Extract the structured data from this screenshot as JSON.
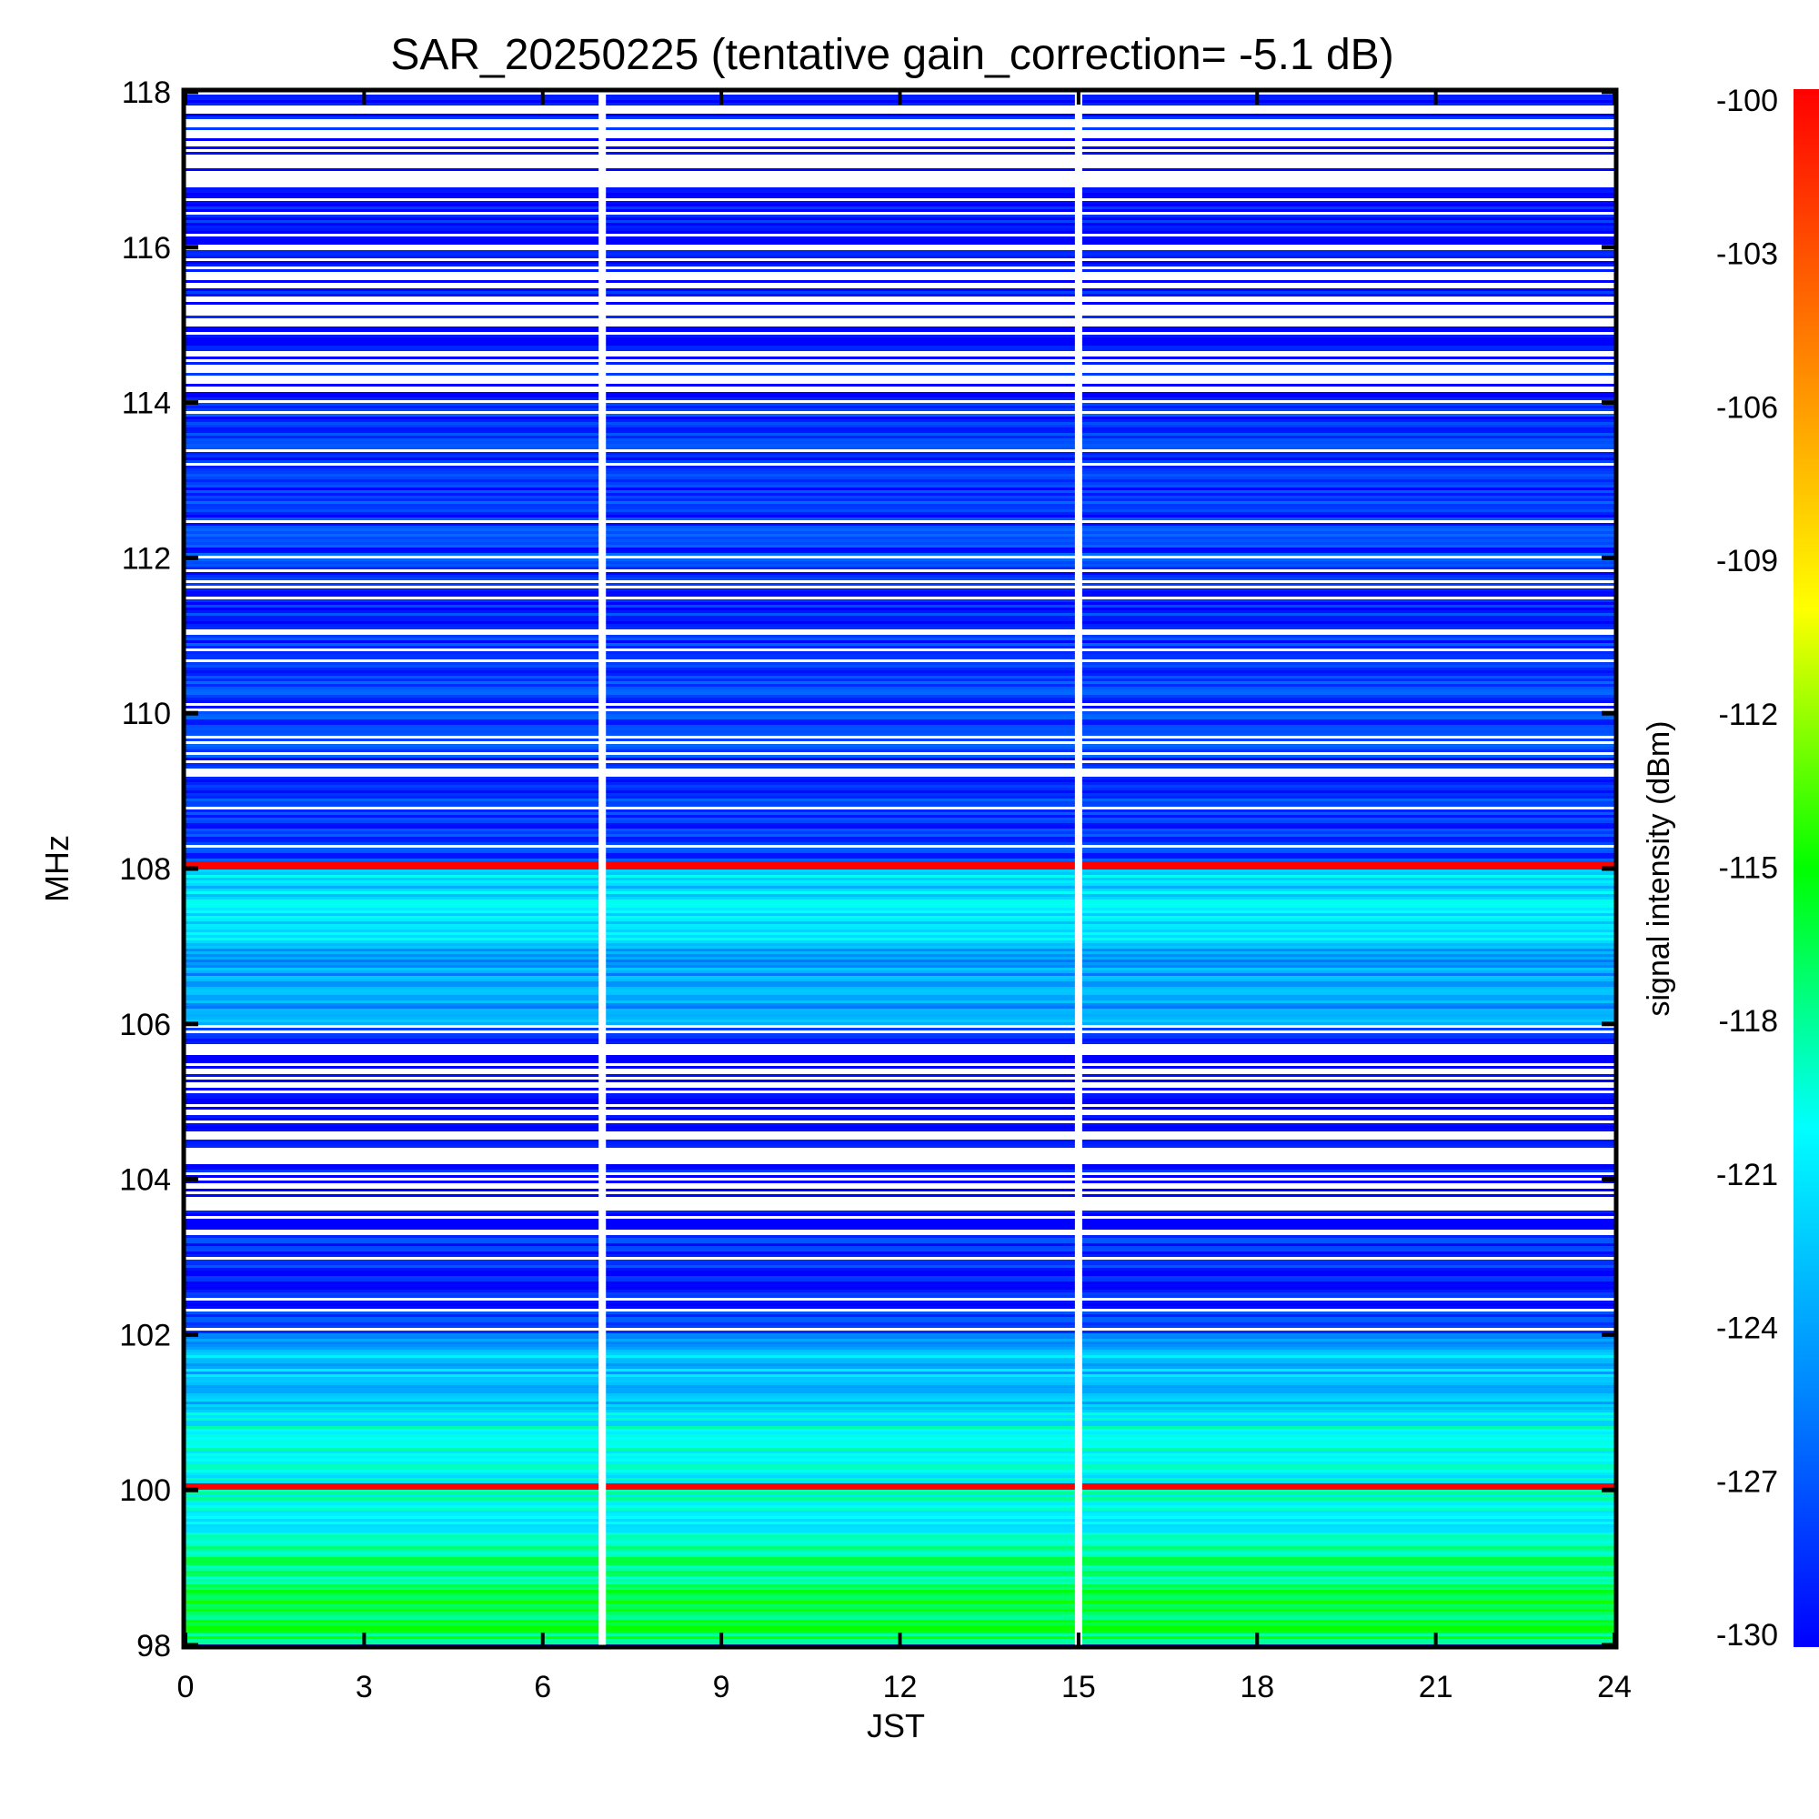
{
  "chart_data": {
    "type": "heatmap",
    "title": "SAR_20250225 (tentative gain_correction= -5.1 dB)",
    "xlabel": "JST",
    "ylabel": "MHz",
    "xlim": [
      0,
      24
    ],
    "ylim": [
      98,
      118
    ],
    "x_ticks": [
      "0",
      "3",
      "6",
      "9",
      "12",
      "15",
      "18",
      "21",
      "24"
    ],
    "y_ticks": [
      "98",
      "100",
      "102",
      "104",
      "106",
      "108",
      "110",
      "112",
      "114",
      "116",
      "118"
    ],
    "colorbar": {
      "label": "signal intensity (dBm)",
      "range": [
        -130,
        -100
      ],
      "ticks": [
        "-100",
        "-103",
        "-106",
        "-109",
        "-112",
        "-115",
        "-118",
        "-121",
        "-124",
        "-127",
        "-130"
      ],
      "colors": [
        "#0000ff",
        "#0088ff",
        "#00ffff",
        "#00ff00",
        "#ffff00",
        "#ff8000",
        "#ff0000"
      ]
    },
    "data_gaps_jst": [
      7.0,
      15.0
    ],
    "bands": [
      {
        "f0": 98.0,
        "f1": 98.7,
        "level": -116.5
      },
      {
        "f0": 98.7,
        "f1": 99.3,
        "level": -118
      },
      {
        "f0": 99.3,
        "f1": 100.0,
        "level": -119.5
      },
      {
        "f0": 100.0,
        "f1": 100.1,
        "level": -100
      },
      {
        "f0": 100.1,
        "f1": 101.0,
        "level": -120
      },
      {
        "f0": 101.0,
        "f1": 101.8,
        "level": -122.5
      },
      {
        "f0": 101.8,
        "f1": 102.0,
        "level": -125.5
      },
      {
        "f0": 102.0,
        "f1": 103.3,
        "level": -128.5
      },
      {
        "f0": 103.3,
        "f1": 106.0,
        "level": -129.5
      },
      {
        "f0": 106.0,
        "f1": 107.0,
        "level": -124
      },
      {
        "f0": 107.0,
        "f1": 108.0,
        "level": -121.5
      },
      {
        "f0": 108.0,
        "f1": 108.1,
        "level": -100
      },
      {
        "f0": 108.1,
        "f1": 114.0,
        "level": -128
      },
      {
        "f0": 114.0,
        "f1": 118.0,
        "level": -129.5
      }
    ],
    "strong_lines": [
      {
        "freq": 100.05,
        "level": -100
      },
      {
        "freq": 108.05,
        "level": -100
      }
    ]
  }
}
